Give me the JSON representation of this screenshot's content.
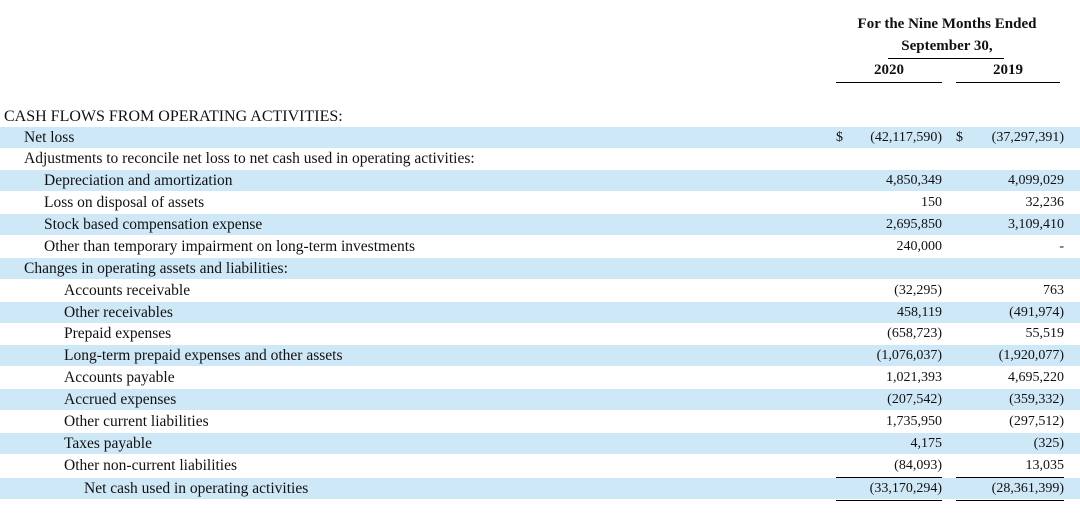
{
  "header": {
    "period_line1": "For the Nine Months Ended",
    "period_line2": "September 30,",
    "col_2020": "2020",
    "col_2019": "2019"
  },
  "section_title": "CASH FLOWS FROM OPERATING ACTIVITIES:",
  "rows": [
    {
      "label": "Net loss",
      "cur1": "$",
      "v2020": "(42,117,590)",
      "cur2": "$",
      "v2019": "(37,297,391)"
    },
    {
      "label": "Adjustments to reconcile net loss to net cash used in operating activities:",
      "v2020": "",
      "v2019": ""
    },
    {
      "label": "Depreciation and amortization",
      "v2020": "4,850,349",
      "v2019": "4,099,029"
    },
    {
      "label": "Loss on disposal of assets",
      "v2020": "150",
      "v2019": "32,236"
    },
    {
      "label": "Stock based compensation expense",
      "v2020": "2,695,850",
      "v2019": "3,109,410"
    },
    {
      "label": "Other than temporary impairment on long-term investments",
      "v2020": "240,000",
      "v2019": "-"
    },
    {
      "label": "Changes in operating assets and liabilities:",
      "v2020": "",
      "v2019": ""
    },
    {
      "label": "Accounts receivable",
      "v2020": "(32,295)",
      "v2019": "763"
    },
    {
      "label": "Other receivables",
      "v2020": "458,119",
      "v2019": "(491,974)"
    },
    {
      "label": "Prepaid expenses",
      "v2020": "(658,723)",
      "v2019": "55,519"
    },
    {
      "label": "Long-term prepaid expenses and other assets",
      "v2020": "(1,076,037)",
      "v2019": "(1,920,077)"
    },
    {
      "label": "Accounts payable",
      "v2020": "1,021,393",
      "v2019": "4,695,220"
    },
    {
      "label": "Accrued expenses",
      "v2020": "(207,542)",
      "v2019": "(359,332)"
    },
    {
      "label": "Other current liabilities",
      "v2020": "1,735,950",
      "v2019": "(297,512)"
    },
    {
      "label": "Taxes payable",
      "v2020": "4,175",
      "v2019": "(325)"
    },
    {
      "label": "Other non-current liabilities",
      "v2020": "(84,093)",
      "v2019": "13,035"
    },
    {
      "label": "Net cash used in operating activities",
      "v2020": "(33,170,294)",
      "v2019": "(28,361,399)"
    }
  ]
}
